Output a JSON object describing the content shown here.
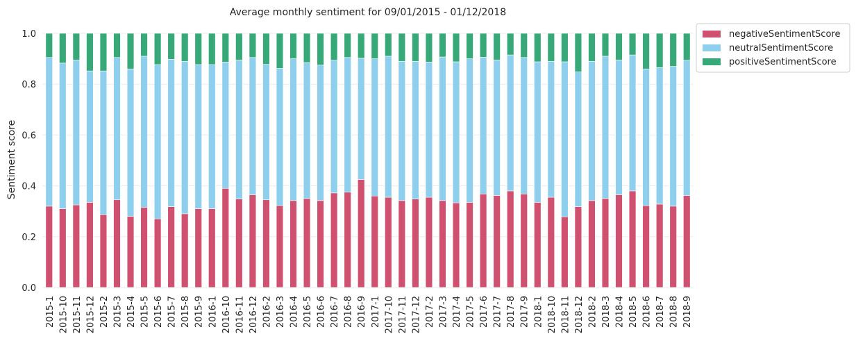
{
  "chart_data": {
    "type": "bar",
    "stacked": true,
    "title": "Average monthly sentiment for 09/01/2015 - 01/12/2018",
    "xlabel": "",
    "ylabel": "Sentiment score",
    "ylim": [
      0,
      1.0
    ],
    "yticks": [
      "0.0",
      "0.2",
      "0.4",
      "0.6",
      "0.8",
      "1.0"
    ],
    "grid": true,
    "legend_position": "top-right, outside plot",
    "categories": [
      "2015-1",
      "2015-10",
      "2015-11",
      "2015-12",
      "2015-2",
      "2015-3",
      "2015-4",
      "2015-5",
      "2015-6",
      "2015-7",
      "2015-8",
      "2015-9",
      "2016-1",
      "2016-10",
      "2016-11",
      "2016-12",
      "2016-2",
      "2016-3",
      "2016-4",
      "2016-5",
      "2016-6",
      "2016-7",
      "2016-8",
      "2016-9",
      "2017-1",
      "2017-10",
      "2017-11",
      "2017-12",
      "2017-2",
      "2017-3",
      "2017-4",
      "2017-5",
      "2017-6",
      "2017-7",
      "2017-8",
      "2017-9",
      "2018-1",
      "2018-10",
      "2018-11",
      "2018-12",
      "2018-2",
      "2018-3",
      "2018-4",
      "2018-5",
      "2018-6",
      "2018-7",
      "2018-8",
      "2018-9"
    ],
    "series": [
      {
        "name": "negativeSentimentScore",
        "color": "#d0506f",
        "values": [
          0.32,
          0.31,
          0.325,
          0.335,
          0.287,
          0.345,
          0.28,
          0.315,
          0.27,
          0.318,
          0.29,
          0.31,
          0.31,
          0.39,
          0.348,
          0.365,
          0.345,
          0.322,
          0.342,
          0.35,
          0.342,
          0.372,
          0.375,
          0.425,
          0.36,
          0.355,
          0.342,
          0.348,
          0.355,
          0.342,
          0.333,
          0.335,
          0.368,
          0.362,
          0.38,
          0.368,
          0.335,
          0.355,
          0.278,
          0.318,
          0.342,
          0.35,
          0.365,
          0.38,
          0.322,
          0.328,
          0.32,
          0.362
        ]
      },
      {
        "name": "neutralSentimentScore",
        "color": "#8ecfee",
        "values": [
          0.585,
          0.573,
          0.57,
          0.517,
          0.565,
          0.56,
          0.58,
          0.595,
          0.607,
          0.58,
          0.6,
          0.567,
          0.567,
          0.497,
          0.547,
          0.54,
          0.533,
          0.54,
          0.558,
          0.535,
          0.533,
          0.522,
          0.53,
          0.477,
          0.54,
          0.555,
          0.548,
          0.542,
          0.532,
          0.565,
          0.555,
          0.565,
          0.538,
          0.533,
          0.535,
          0.537,
          0.553,
          0.535,
          0.61,
          0.53,
          0.548,
          0.56,
          0.53,
          0.535,
          0.538,
          0.537,
          0.55,
          0.532
        ]
      },
      {
        "name": "positiveSentimentScore",
        "color": "#37a877",
        "values": [
          0.095,
          0.117,
          0.105,
          0.148,
          0.148,
          0.095,
          0.14,
          0.09,
          0.123,
          0.102,
          0.11,
          0.123,
          0.123,
          0.113,
          0.105,
          0.095,
          0.122,
          0.138,
          0.1,
          0.115,
          0.125,
          0.106,
          0.095,
          0.098,
          0.1,
          0.09,
          0.11,
          0.11,
          0.113,
          0.093,
          0.112,
          0.1,
          0.094,
          0.105,
          0.085,
          0.095,
          0.112,
          0.11,
          0.112,
          0.152,
          0.11,
          0.09,
          0.105,
          0.085,
          0.14,
          0.135,
          0.13,
          0.106
        ]
      }
    ]
  }
}
